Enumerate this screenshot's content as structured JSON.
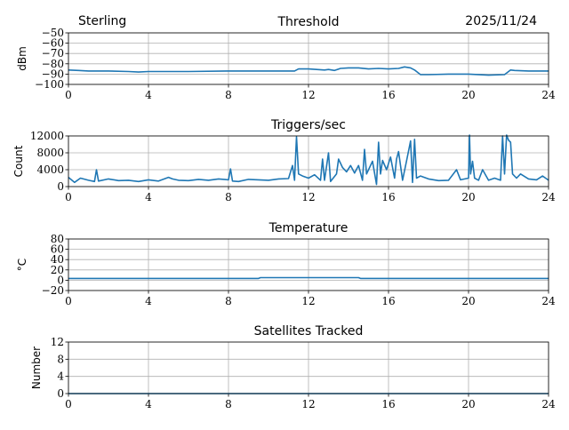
{
  "header": {
    "station": "Sterling",
    "date": "2025/11/24"
  },
  "colors": {
    "line": "#1f77b4",
    "grid": "#b0b0b0"
  },
  "chart_data": [
    {
      "type": "line",
      "title": "Threshold",
      "ylabel": "dBm",
      "xlabel": "",
      "xlim": [
        0,
        24
      ],
      "ylim": [
        -100,
        -50
      ],
      "xticks": [
        0,
        4,
        8,
        12,
        16,
        20,
        24
      ],
      "yticks": [
        -50,
        -60,
        -70,
        -80,
        -90,
        -100
      ],
      "ytick_labels": [
        "−50",
        "−60",
        "−70",
        "−80",
        "−90",
        "−100"
      ],
      "grid": true,
      "x": [
        0,
        0.5,
        1,
        2,
        3,
        3.5,
        4,
        6,
        8,
        10,
        11.3,
        11.5,
        12,
        12.8,
        13,
        13.3,
        13.6,
        14,
        14.5,
        15,
        15.5,
        16,
        16.5,
        16.8,
        17.1,
        17.3,
        17.6,
        18,
        19,
        20,
        21,
        21.8,
        22.1,
        22.3,
        23,
        24
      ],
      "y": [
        -86,
        -86.5,
        -87,
        -87,
        -87.5,
        -88,
        -87.5,
        -87.5,
        -87,
        -87,
        -87,
        -85,
        -85,
        -86,
        -85.5,
        -86.5,
        -84.5,
        -84,
        -84,
        -85,
        -84.5,
        -85,
        -84.5,
        -83,
        -84,
        -86,
        -90.5,
        -90.5,
        -90,
        -90,
        -91,
        -90.5,
        -86,
        -86.5,
        -87,
        -87
      ]
    },
    {
      "type": "line",
      "title": "Triggers/sec",
      "ylabel": "Count",
      "xlabel": "",
      "xlim": [
        0,
        24
      ],
      "ylim": [
        0,
        12000
      ],
      "xticks": [
        0,
        4,
        8,
        12,
        16,
        20,
        24
      ],
      "yticks": [
        0,
        4000,
        8000,
        12000
      ],
      "ytick_labels": [
        "0",
        "4000",
        "8000",
        "12000"
      ],
      "grid": true,
      "x": [
        0,
        0.3,
        0.6,
        1,
        1.3,
        1.4,
        1.5,
        2,
        2.5,
        3,
        3.5,
        4,
        4.5,
        5,
        5.2,
        5.5,
        6,
        6.5,
        7,
        7.5,
        8,
        8.1,
        8.2,
        8.5,
        9,
        9.5,
        10,
        10.5,
        11,
        11.2,
        11.3,
        11.4,
        11.5,
        11.7,
        12,
        12.3,
        12.6,
        12.7,
        12.8,
        13,
        13.1,
        13.4,
        13.5,
        13.7,
        13.9,
        14.1,
        14.3,
        14.5,
        14.7,
        14.8,
        14.9,
        15.2,
        15.4,
        15.5,
        15.6,
        15.7,
        15.9,
        16.1,
        16.3,
        16.4,
        16.5,
        16.7,
        16.9,
        17.1,
        17.2,
        17.3,
        17.4,
        17.6,
        18,
        18.5,
        19,
        19.4,
        19.6,
        20,
        20.05,
        20.1,
        20.2,
        20.3,
        20.5,
        20.7,
        21,
        21.3,
        21.6,
        21.7,
        21.8,
        21.9,
        22,
        22.1,
        22.2,
        22.4,
        22.6,
        23,
        23.4,
        23.7,
        24
      ],
      "y": [
        2200,
        1000,
        2000,
        1500,
        1200,
        4000,
        1300,
        1800,
        1400,
        1500,
        1200,
        1600,
        1300,
        2200,
        1800,
        1500,
        1400,
        1700,
        1500,
        1800,
        1600,
        4200,
        1300,
        1200,
        1700,
        1600,
        1500,
        1800,
        1900,
        5000,
        1500,
        11800,
        3000,
        2500,
        2000,
        2800,
        1500,
        6500,
        1500,
        8000,
        1200,
        3000,
        6500,
        4500,
        3500,
        5000,
        3200,
        5000,
        1500,
        8800,
        3000,
        6000,
        500,
        10500,
        3000,
        6200,
        4000,
        7000,
        2000,
        6500,
        8300,
        1500,
        6000,
        10800,
        1000,
        11200,
        2000,
        2500,
        1800,
        1400,
        1500,
        4000,
        1600,
        2000,
        12200,
        3000,
        6000,
        2000,
        1500,
        4000,
        1500,
        2000,
        1500,
        12000,
        3000,
        12200,
        11000,
        10500,
        3000,
        2000,
        3000,
        1800,
        1600,
        2500,
        1500
      ]
    },
    {
      "type": "line",
      "title": "Temperature",
      "ylabel": "°C",
      "xlabel": "",
      "xlim": [
        0,
        24
      ],
      "ylim": [
        -20,
        80
      ],
      "xticks": [
        0,
        4,
        8,
        12,
        16,
        20,
        24
      ],
      "yticks": [
        -20,
        0,
        20,
        40,
        60,
        80
      ],
      "ytick_labels": [
        "−20",
        "0",
        "20",
        "40",
        "60",
        "80"
      ],
      "grid": true,
      "x": [
        0,
        8,
        9.5,
        9.6,
        14.5,
        14.6,
        24
      ],
      "y": [
        3.5,
        3.5,
        3.5,
        5,
        5,
        3.5,
        3.5
      ]
    },
    {
      "type": "line",
      "title": "Satellites Tracked",
      "ylabel": "Number",
      "xlabel": "",
      "xlim": [
        0,
        24
      ],
      "ylim": [
        0,
        12
      ],
      "xticks": [
        0,
        4,
        8,
        12,
        16,
        20,
        24
      ],
      "yticks": [
        0,
        4,
        8,
        12
      ],
      "ytick_labels": [
        "0",
        "4",
        "8",
        "12"
      ],
      "grid": true,
      "x": [
        0,
        24
      ],
      "y": [
        0,
        0
      ]
    }
  ]
}
